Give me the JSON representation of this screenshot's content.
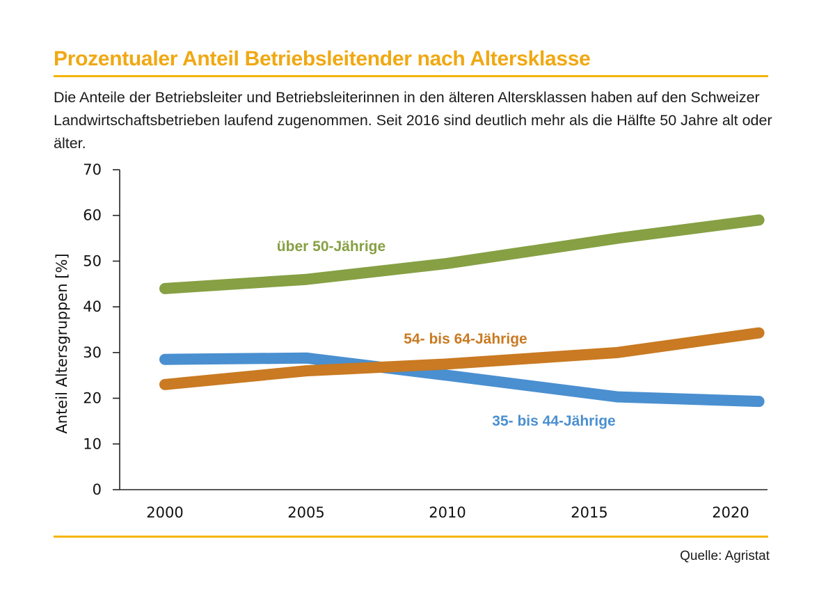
{
  "header": {
    "title": "Prozentualer Anteil Betriebsleitender nach Altersklasse",
    "subtitle": "Die Anteile der Betriebsleiter und Betriebsleiterinnen in den älteren Altersklassen haben auf den Schweizer Landwirtschaftsbetrieben laufend zugenommen. Seit 2016 sind deutlich mehr als die Hälfte 50 Jahre alt oder älter."
  },
  "footer": {
    "source": "Quelle: Agristat"
  },
  "colors": {
    "accent": "#f5b400",
    "title": "#f0a812"
  },
  "chart_data": {
    "type": "line",
    "title": "Prozentualer Anteil Betriebsleitender nach Altersklasse",
    "xlabel": "",
    "ylabel": "Anteil Altersgruppen [%]",
    "ylim": [
      0,
      70
    ],
    "xlim": [
      1999,
      2021
    ],
    "yticks": [
      0,
      10,
      20,
      30,
      40,
      50,
      60,
      70
    ],
    "xticks": [
      2000,
      2005,
      2010,
      2015,
      2020
    ],
    "grid": false,
    "legend": "inline labels",
    "series": [
      {
        "name": "über 50-Jährige",
        "color": "#86a043",
        "x": [
          2000,
          2005,
          2010,
          2016,
          2021
        ],
        "y": [
          44,
          46,
          49.5,
          55,
          59
        ]
      },
      {
        "name": "54- bis 64-Jährige",
        "color": "#c97a22",
        "x": [
          2000,
          2005,
          2010,
          2016,
          2021
        ],
        "y": [
          23,
          26,
          27.5,
          30,
          34.3
        ]
      },
      {
        "name": "35- bis 44-Jährige",
        "color": "#4a8fd0",
        "x": [
          2000,
          2005,
          2010,
          2016,
          2021
        ],
        "y": [
          28.5,
          28.8,
          25,
          20.3,
          19.3
        ]
      }
    ]
  }
}
